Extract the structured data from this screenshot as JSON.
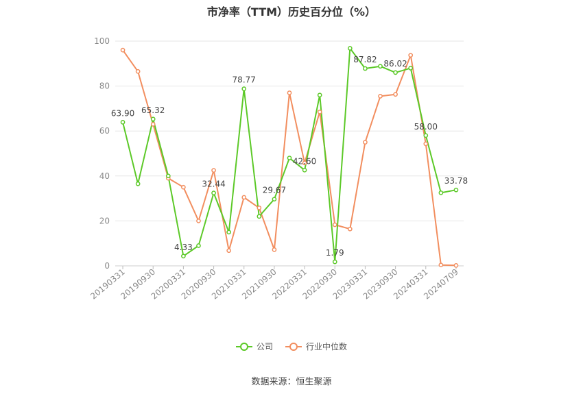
{
  "chart_data": {
    "type": "line",
    "title": "市净率（TTM）历史百分位（%）",
    "xlabel": "",
    "ylabel": "",
    "ylim": [
      0,
      100
    ],
    "yticks": [
      0,
      20,
      40,
      60,
      80,
      100
    ],
    "grid": true,
    "legend_position": "bottom",
    "x_tick_labels": [
      "20190331",
      "20190930",
      "20200331",
      "20200930",
      "20210331",
      "20210930",
      "20220331",
      "20220930",
      "20230331",
      "20230930",
      "20240331",
      "20240709"
    ],
    "x_tick_indices": [
      0,
      2,
      4,
      6,
      8,
      10,
      12,
      14,
      16,
      18,
      20,
      22
    ],
    "series": [
      {
        "name": "公司",
        "color": "#5cc928",
        "values": [
          63.9,
          36.5,
          65.32,
          40.0,
          4.33,
          9.0,
          32.44,
          15.0,
          78.77,
          22.0,
          29.67,
          48.0,
          42.6,
          76.0,
          1.79,
          96.8,
          87.82,
          88.8,
          86.02,
          88.0,
          58.0,
          32.5,
          33.78
        ],
        "labels": [
          "63.90",
          null,
          "65.32",
          null,
          "4.33",
          null,
          "32.44",
          null,
          "78.77",
          null,
          "29.67",
          null,
          "42.60",
          null,
          "1.79",
          null,
          "87.82",
          null,
          "86.02",
          null,
          "58.00",
          null,
          "33.78"
        ]
      },
      {
        "name": "行业中位数",
        "color": "#f28e5f",
        "values": [
          96.0,
          86.5,
          63.0,
          39.0,
          35.0,
          20.0,
          42.5,
          6.8,
          30.5,
          25.8,
          7.2,
          77.0,
          45.8,
          68.5,
          18.3,
          16.4,
          55.0,
          75.5,
          76.3,
          93.7,
          54.3,
          0.4,
          0.2
        ]
      }
    ]
  },
  "footer": {
    "source": "数据来源：恒生聚源"
  }
}
